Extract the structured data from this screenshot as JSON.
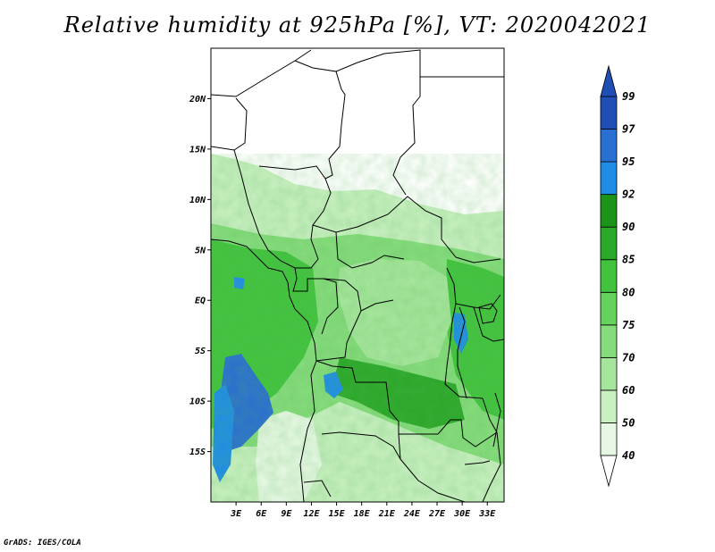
{
  "title": "Relative humidity at 925hPa [%], VT: 2020042021",
  "credit": "GrADS: IGES/COLA",
  "map": {
    "lat_labels": [
      "20N",
      "15N",
      "10N",
      "5N",
      "EQ",
      "5S",
      "10S",
      "15S"
    ],
    "lon_labels": [
      "3E",
      "6E",
      "9E",
      "12E",
      "15E",
      "18E",
      "21E",
      "24E",
      "27E",
      "30E",
      "33E"
    ],
    "lon_range": [
      0,
      35
    ],
    "lat_range": [
      -20,
      25
    ]
  },
  "colorbar": {
    "levels": [
      "40",
      "50",
      "60",
      "70",
      "75",
      "80",
      "85",
      "90",
      "92",
      "95",
      "97",
      "99"
    ],
    "colors": [
      "#ffffff",
      "#e6f8e3",
      "#c8f0c0",
      "#a6e69c",
      "#86dc7c",
      "#64d25c",
      "#42c33e",
      "#2ca82a",
      "#1b9419",
      "#1f8de6",
      "#2a6fd2",
      "#1f4fb4"
    ],
    "units": "%"
  },
  "colors": {
    "border": "#000000",
    "no_data": "#ffffff",
    "coast": "#000000"
  }
}
